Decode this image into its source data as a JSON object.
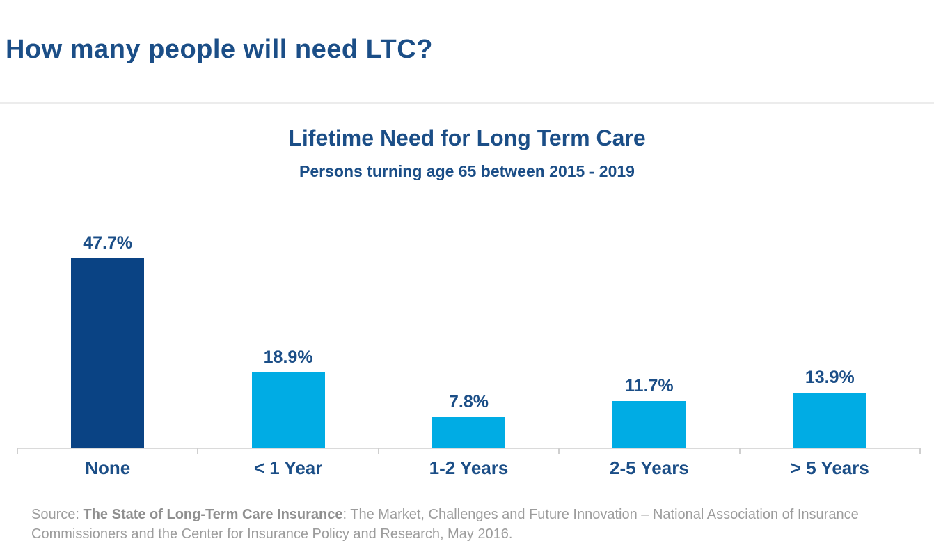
{
  "page": {
    "title": "How many people will need LTC?"
  },
  "chart_data": {
    "type": "bar",
    "title": "Lifetime Need for Long Term Care",
    "subtitle": "Persons turning age 65 between 2015 - 2019",
    "categories": [
      "None",
      "< 1 Year",
      "1-2 Years",
      "2-5 Years",
      "> 5 Years"
    ],
    "values": [
      47.7,
      18.9,
      7.8,
      11.7,
      13.9
    ],
    "value_labels": [
      "47.7%",
      "18.9%",
      "7.8%",
      "11.7%",
      "13.9%"
    ],
    "ylim": [
      0,
      50
    ],
    "xlabel": "",
    "ylabel": "",
    "grid": false,
    "legend": "none",
    "bar_colors": [
      "#0A4384",
      "#00ACE4",
      "#00ACE4",
      "#00ACE4",
      "#00ACE4"
    ],
    "label_color": "#1B4E87",
    "axis_color": "#DADADA"
  },
  "source": {
    "prefix": "Source: ",
    "emphasis": "The State of Long-Term Care Insurance",
    "rest": ": The Market, Challenges and Future Innovation – National Association of Insurance Commissioners and the Center for Insurance Policy and Research, May 2016."
  }
}
